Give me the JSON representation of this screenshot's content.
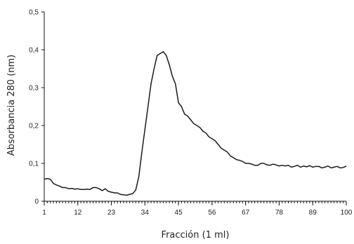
{
  "chart_data": {
    "type": "line",
    "title": "",
    "xlabel": "Fracción (1 ml)",
    "ylabel": "Absorbancia 280 (nm)",
    "xlim": [
      1,
      100
    ],
    "ylim": [
      0,
      0.5
    ],
    "xticks": [
      1,
      12,
      23,
      34,
      45,
      56,
      67,
      78,
      89,
      100
    ],
    "xtick_labels": [
      "1",
      "12",
      "23",
      "34",
      "45",
      "56",
      "67",
      "78",
      "89",
      "100"
    ],
    "yticks": [
      0,
      0.1,
      0.2,
      0.3,
      0.4,
      0.5
    ],
    "ytick_labels": [
      "0",
      "0,1",
      "0,2",
      "0,3",
      "0,4",
      "0,5"
    ],
    "grid": false,
    "series": [
      {
        "x": [
          1,
          2,
          3,
          4,
          5,
          6,
          7,
          8,
          9,
          10,
          11,
          12,
          13,
          14,
          15,
          16,
          17,
          18,
          19,
          20,
          21,
          22,
          23,
          24,
          25,
          26,
          27,
          28,
          29,
          30,
          31,
          32,
          33,
          34,
          35,
          36,
          37,
          38,
          39,
          40,
          41,
          42,
          43,
          44,
          45,
          46,
          47,
          48,
          49,
          50,
          51,
          52,
          53,
          54,
          55,
          56,
          57,
          58,
          59,
          60,
          61,
          62,
          63,
          64,
          65,
          66,
          67,
          68,
          69,
          70,
          71,
          72,
          73,
          74,
          75,
          76,
          77,
          78,
          79,
          80,
          81,
          82,
          83,
          84,
          85,
          86,
          87,
          88,
          89,
          90,
          91,
          92,
          93,
          94,
          95,
          96,
          97,
          98,
          99,
          100
        ],
        "y": [
          0.058,
          0.06,
          0.058,
          0.047,
          0.043,
          0.04,
          0.036,
          0.036,
          0.033,
          0.034,
          0.032,
          0.033,
          0.031,
          0.031,
          0.032,
          0.031,
          0.036,
          0.036,
          0.033,
          0.028,
          0.033,
          0.026,
          0.024,
          0.022,
          0.022,
          0.018,
          0.017,
          0.016,
          0.018,
          0.02,
          0.03,
          0.065,
          0.13,
          0.19,
          0.25,
          0.31,
          0.35,
          0.385,
          0.39,
          0.395,
          0.385,
          0.36,
          0.33,
          0.31,
          0.26,
          0.25,
          0.23,
          0.225,
          0.215,
          0.205,
          0.2,
          0.195,
          0.185,
          0.18,
          0.17,
          0.165,
          0.16,
          0.15,
          0.14,
          0.135,
          0.13,
          0.12,
          0.115,
          0.11,
          0.108,
          0.105,
          0.1,
          0.1,
          0.098,
          0.095,
          0.095,
          0.1,
          0.1,
          0.096,
          0.095,
          0.098,
          0.096,
          0.093,
          0.095,
          0.093,
          0.095,
          0.09,
          0.092,
          0.095,
          0.09,
          0.093,
          0.091,
          0.094,
          0.09,
          0.092,
          0.092,
          0.088,
          0.09,
          0.093,
          0.088,
          0.09,
          0.092,
          0.088,
          0.089,
          0.093
        ]
      }
    ]
  }
}
